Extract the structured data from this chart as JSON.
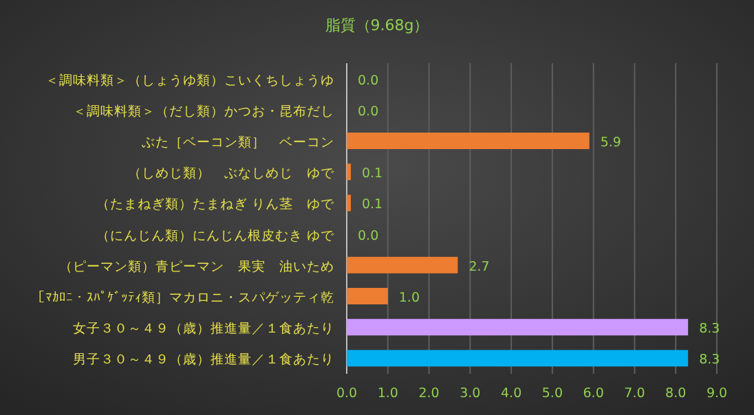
{
  "chart_data": {
    "type": "bar",
    "orientation": "horizontal",
    "title": "脂質（9.68g）",
    "categories": [
      "＜調味料類＞（しょうゆ類）こいくちしょうゆ",
      "＜調味料類＞（だし類）かつお・昆布だし",
      "ぶた［ベーコン類］　ベーコン",
      "（しめじ類）　ぶなしめじ　ゆで",
      "（たまねぎ類）たまねぎ りん茎　ゆで",
      "（にんじん類）にんじん根皮むき ゆで",
      "（ピーマン類）青ピーマン　果実　油いため",
      "［ﾏｶﾛﾆ・ｽﾊﾟｹﾞｯﾃｨ類］マカロニ・スパゲッティ乾",
      "女子３０～４９（歳）推進量／１食あたり",
      "男子３０～４９（歳）推進量／１食あたり"
    ],
    "values": [
      0.0,
      0.0,
      5.9,
      0.1,
      0.1,
      0.0,
      2.7,
      1.0,
      8.3,
      8.3
    ],
    "colors": [
      "#ed7d31",
      "#ed7d31",
      "#ed7d31",
      "#ed7d31",
      "#ed7d31",
      "#ed7d31",
      "#ed7d31",
      "#ed7d31",
      "#cc99ff",
      "#00b0f0"
    ],
    "value_labels": [
      "0.0",
      "0.0",
      "5.9",
      "0.1",
      "0.1",
      "0.0",
      "2.7",
      "1.0",
      "8.3",
      "8.3"
    ],
    "grid": "x",
    "xlim": [
      0,
      9
    ],
    "xticks": [
      {
        "value": 0,
        "label": "0.0"
      },
      {
        "value": 1,
        "label": "1.0"
      },
      {
        "value": 2,
        "label": "2.0"
      },
      {
        "value": 3,
        "label": "3.0"
      },
      {
        "value": 4,
        "label": "4.0"
      },
      {
        "value": 5,
        "label": "5.0"
      },
      {
        "value": 6,
        "label": "6.0"
      },
      {
        "value": 7,
        "label": "7.0"
      },
      {
        "value": 8,
        "label": "8.0"
      },
      {
        "value": 9,
        "label": "9.0"
      }
    ]
  }
}
